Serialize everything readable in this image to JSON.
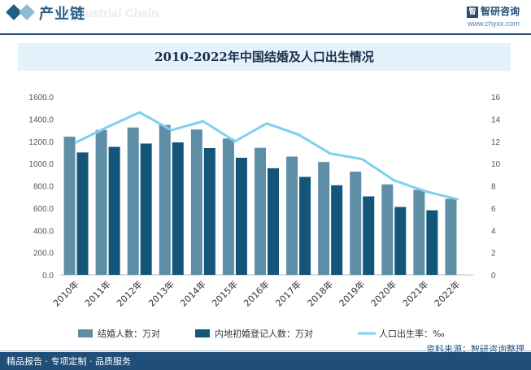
{
  "header": {
    "title": "产业链",
    "watermark": "Industrial Chain",
    "brand_name": "智研咨询",
    "brand_logo": "智",
    "brand_url": "www.chyxx.com"
  },
  "footer": {
    "tagline": "精品报告 · 专项定制 · 品质服务",
    "source": "资料来源：智研咨询整理"
  },
  "colors": {
    "bar1": "#5e8fa7",
    "bar2": "#13567a",
    "line": "#7fd0ee",
    "title_bg": "#e4f2fb",
    "footer": "#1f4e79"
  },
  "chart_data": {
    "type": "bar",
    "title": "2010-2022年中国结婚及人口出生情况",
    "categories": [
      "2010年",
      "2011年",
      "2012年",
      "2013年",
      "2014年",
      "2015年",
      "2016年",
      "2017年",
      "2018年",
      "2019年",
      "2020年",
      "2021年",
      "2022年"
    ],
    "series": [
      {
        "name": "结婚人数：万对",
        "type": "bar",
        "axis": "left",
        "values": [
          1241,
          1302,
          1324,
          1347,
          1306,
          1225,
          1142,
          1063,
          1014,
          927,
          813,
          764,
          683
        ]
      },
      {
        "name": "内地初婚登记人数：万对",
        "type": "bar",
        "axis": "left",
        "values": [
          1100,
          1150,
          1180,
          1190,
          1140,
          1052,
          958,
          880,
          805,
          705,
          610,
          580,
          null
        ]
      },
      {
        "name": "人口出生率：‰",
        "type": "line",
        "axis": "right",
        "values": [
          11.9,
          13.3,
          14.6,
          13.0,
          13.8,
          12.0,
          13.6,
          12.6,
          10.9,
          10.4,
          8.5,
          7.5,
          6.8
        ]
      }
    ],
    "ylim": [
      0,
      1600
    ],
    "y2lim": [
      0,
      16
    ],
    "yticks": [
      "0.0",
      "200.0",
      "400.0",
      "600.0",
      "800.0",
      "1000.0",
      "1200.0",
      "1400.0",
      "1600.0"
    ],
    "y2ticks": [
      "0",
      "2",
      "4",
      "6",
      "8",
      "10",
      "12",
      "14",
      "16"
    ],
    "grid": false,
    "legend": "bottom"
  }
}
